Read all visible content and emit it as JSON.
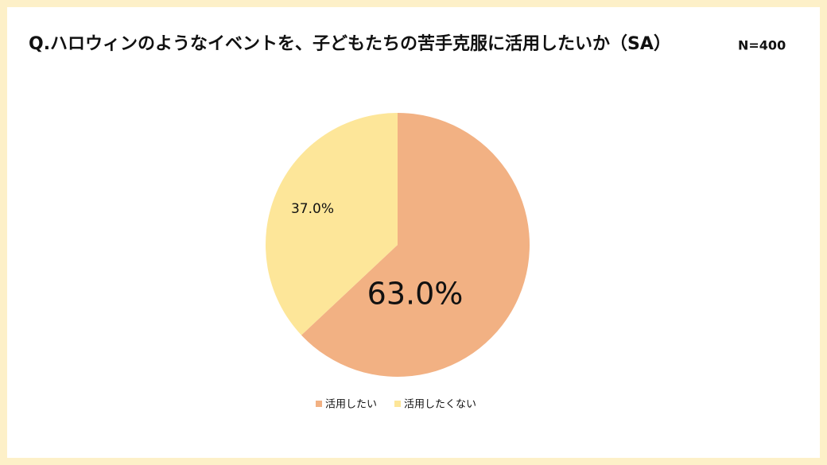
{
  "chart_data": {
    "type": "pie",
    "title": "Q.ハロウィンのようなイベントを、子どもたちの苦手克服に活用したいか（SA）",
    "note": "N=400",
    "categories": [
      "活用したい",
      "活用したくない"
    ],
    "values": [
      63.0,
      37.0
    ],
    "value_labels": [
      "63.0%",
      "37.0%"
    ],
    "colors": [
      "#f2b183",
      "#fde699"
    ],
    "legend": "bottom"
  }
}
